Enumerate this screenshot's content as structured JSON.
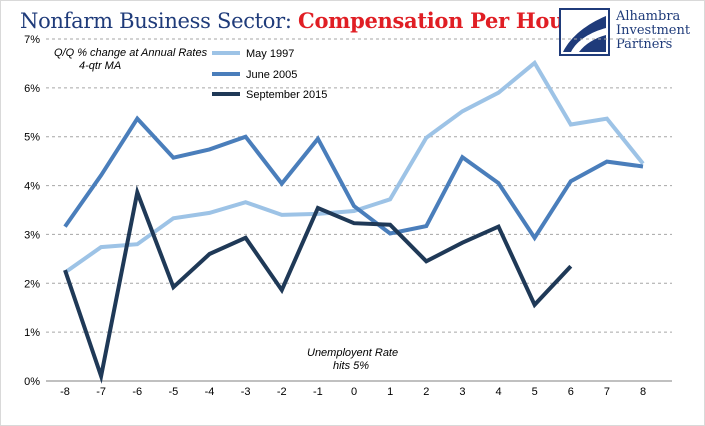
{
  "header": {
    "title_part1": "Nonfarm Business Sector: ",
    "title_part2": "Compensation Per Hour"
  },
  "logo": {
    "line1": "Alhambra",
    "line2": "Investment",
    "line3": "Partners"
  },
  "colors": {
    "title_blue": "#1f3b7a",
    "title_red": "#e01e24",
    "may1997": "#9dc3e6",
    "june2005": "#4a7ebb",
    "sep2015": "#1f3957"
  },
  "chart_data": {
    "type": "line",
    "title": "Nonfarm Business Sector: Compensation Per Hour",
    "annotation_top": [
      "Q/Q % change at Annual Rates",
      "4-qtr MA"
    ],
    "annotation_bottom": [
      "Unemployent Rate",
      "hits 5%"
    ],
    "x": [
      -8,
      -7,
      -6,
      -5,
      -4,
      -3,
      -2,
      -1,
      0,
      1,
      2,
      3,
      4,
      5,
      6,
      7,
      8
    ],
    "x_tick_labels": [
      "-8",
      "-7",
      "-6",
      "-5",
      "-4",
      "-3",
      "-2",
      "-1",
      "0",
      "1",
      "2",
      "3",
      "4",
      "5",
      "6",
      "7",
      "8"
    ],
    "ylim": [
      0,
      7
    ],
    "y_ticks": [
      0,
      1,
      2,
      3,
      4,
      5,
      6,
      7
    ],
    "y_tick_labels": [
      "0%",
      "1%",
      "2%",
      "3%",
      "4%",
      "5%",
      "6%",
      "7%"
    ],
    "grid": true,
    "legend_position": "top-center",
    "series": [
      {
        "name": "May 1997",
        "color": "#9dc3e6",
        "values": [
          2.22,
          2.74,
          2.8,
          3.33,
          3.44,
          3.66,
          3.4,
          3.42,
          3.48,
          3.72,
          4.98,
          5.52,
          5.9,
          6.51,
          5.25,
          5.37,
          4.45
        ]
      },
      {
        "name": "June 2005",
        "color": "#4a7ebb",
        "values": [
          3.16,
          4.21,
          5.37,
          4.57,
          4.74,
          5.0,
          4.04,
          4.96,
          3.58,
          3.02,
          3.17,
          4.58,
          4.05,
          2.93,
          4.09,
          4.49,
          4.39
        ]
      },
      {
        "name": "September 2015",
        "color": "#1f3957",
        "values": [
          2.27,
          0.1,
          3.86,
          1.92,
          2.6,
          2.93,
          1.86,
          3.54,
          3.23,
          3.2,
          2.45,
          2.83,
          3.16,
          1.56,
          2.35,
          null,
          null
        ]
      }
    ]
  }
}
